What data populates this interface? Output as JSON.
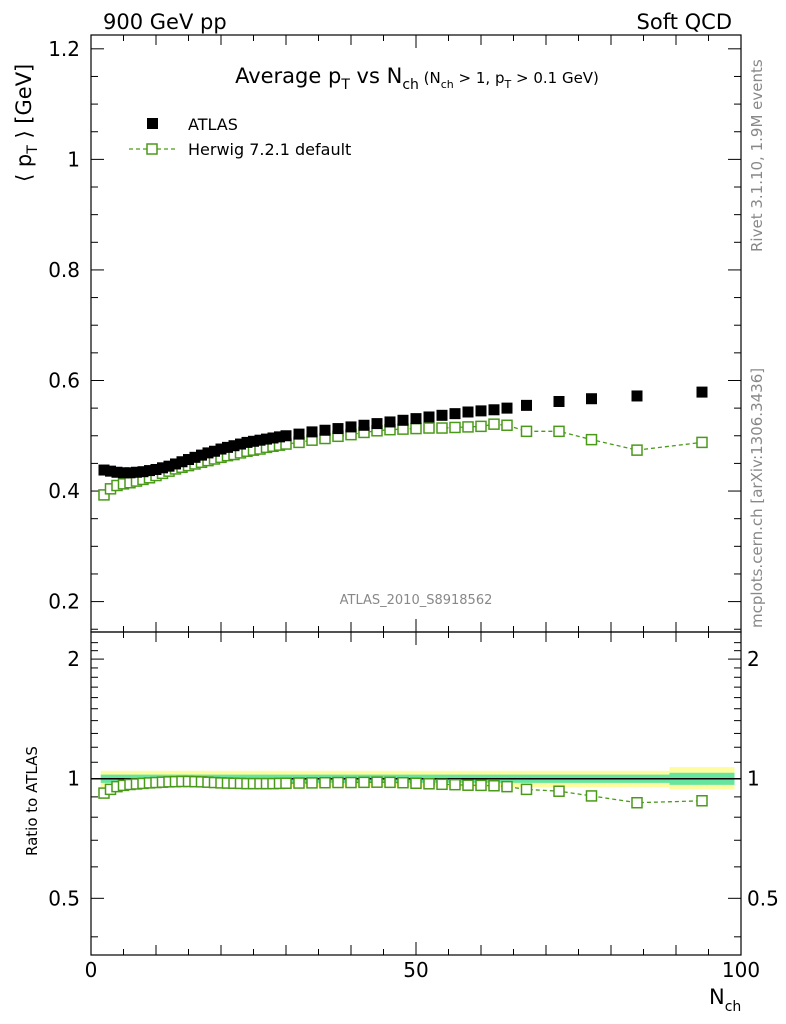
{
  "header": {
    "left": "900 GeV pp",
    "right": "Soft QCD"
  },
  "side_text": {
    "top": "Rivet 3.1.10,  1.9M events",
    "bottom": "mcplots.cern.ch [arXiv:1306.3436]"
  },
  "chart_data": [
    {
      "type": "scatter",
      "title": {
        "main": "Average p",
        "main_sub": "T",
        "vs": " vs N",
        "vs_sub": "ch",
        "cut_open": " (N",
        "cut_sub1": "ch",
        "cut_mid": " > 1, p",
        "cut_sub2": "T",
        "cut_close": " > 0.1 GeV)"
      },
      "ylabel": {
        "open": "⟨ p",
        "sub": "T",
        "close": " ⟩  [GeV]"
      },
      "watermark": "ATLAS_2010_S8918562",
      "xlim": [
        0,
        100
      ],
      "ylim": [
        0.145,
        1.225
      ],
      "yticks": [
        0.2,
        0.4,
        0.6,
        0.8,
        1.0,
        1.2
      ],
      "ytick_labels": [
        "0.2",
        "0.4",
        "0.6",
        "0.8",
        "1",
        "1.2"
      ],
      "series": [
        {
          "name": "ATLAS",
          "marker": "filled-square",
          "color": "#000000",
          "x": [
            2,
            3,
            4,
            5,
            6,
            7,
            8,
            9,
            10,
            11,
            12,
            13,
            14,
            15,
            16,
            17,
            18,
            19,
            20,
            21,
            22,
            23,
            24,
            25,
            26,
            27,
            28,
            29,
            30,
            32,
            34,
            36,
            38,
            40,
            42,
            44,
            46,
            48,
            50,
            52,
            54,
            56,
            58,
            60,
            62,
            64,
            67,
            72,
            77,
            84,
            94
          ],
          "y": [
            0.438,
            0.436,
            0.434,
            0.433,
            0.433,
            0.434,
            0.435,
            0.437,
            0.439,
            0.442,
            0.445,
            0.449,
            0.453,
            0.457,
            0.461,
            0.465,
            0.469,
            0.472,
            0.476,
            0.479,
            0.482,
            0.485,
            0.488,
            0.49,
            0.492,
            0.494,
            0.496,
            0.498,
            0.5,
            0.503,
            0.507,
            0.51,
            0.513,
            0.516,
            0.519,
            0.522,
            0.525,
            0.528,
            0.531,
            0.534,
            0.537,
            0.54,
            0.543,
            0.545,
            0.547,
            0.55,
            0.555,
            0.562,
            0.567,
            0.572,
            0.579
          ]
        },
        {
          "name": "Herwig 7.2.1 default",
          "marker": "open-square",
          "color": "#4a9a1a",
          "x": [
            2,
            3,
            4,
            5,
            6,
            7,
            8,
            9,
            10,
            11,
            12,
            13,
            14,
            15,
            16,
            17,
            18,
            19,
            20,
            21,
            22,
            23,
            24,
            25,
            26,
            27,
            28,
            29,
            30,
            32,
            34,
            36,
            38,
            40,
            42,
            44,
            46,
            48,
            50,
            52,
            54,
            56,
            58,
            60,
            62,
            64,
            67,
            72,
            77,
            84,
            94
          ],
          "y": [
            0.393,
            0.404,
            0.41,
            0.413,
            0.415,
            0.418,
            0.421,
            0.424,
            0.428,
            0.432,
            0.436,
            0.44,
            0.443,
            0.446,
            0.449,
            0.452,
            0.455,
            0.458,
            0.461,
            0.464,
            0.466,
            0.469,
            0.472,
            0.474,
            0.476,
            0.479,
            0.481,
            0.483,
            0.485,
            0.488,
            0.492,
            0.495,
            0.499,
            0.502,
            0.506,
            0.509,
            0.511,
            0.512,
            0.513,
            0.514,
            0.514,
            0.515,
            0.516,
            0.517,
            0.521,
            0.519,
            0.508,
            0.508,
            0.493,
            0.474,
            0.488
          ]
        }
      ]
    },
    {
      "type": "scatter",
      "ylabel": "Ratio to ATLAS",
      "xlabel": "N",
      "xlabel_sub": "ch",
      "xlim": [
        0,
        100
      ],
      "xticks": [
        0,
        50,
        100
      ],
      "xtick_labels": [
        "0",
        "50",
        "100"
      ],
      "ylim": [
        0.36,
        2.34
      ],
      "yticks": [
        0.5,
        1,
        2
      ],
      "ytick_labels": [
        "0.5",
        "1",
        "2"
      ],
      "reference_line": 1.0,
      "bands": {
        "x_edges": [
          1.5,
          89,
          99
        ],
        "inner": [
          [
            0.976,
            1.024
          ],
          [
            0.965,
            1.035
          ]
        ],
        "outer": [
          [
            0.953,
            1.047
          ],
          [
            0.94,
            1.07
          ]
        ],
        "inner_color": "#66e5a0",
        "outer_color": "#fdfda0"
      },
      "series": [
        {
          "name": "Herwig 7.2.1 default",
          "marker": "open-square",
          "color": "#4a9a1a",
          "x": [
            2,
            3,
            4,
            5,
            6,
            7,
            8,
            9,
            10,
            11,
            12,
            13,
            14,
            15,
            16,
            17,
            18,
            19,
            20,
            21,
            22,
            23,
            24,
            25,
            26,
            27,
            28,
            29,
            30,
            32,
            34,
            36,
            38,
            40,
            42,
            44,
            46,
            48,
            50,
            52,
            54,
            56,
            58,
            60,
            62,
            64,
            67,
            72,
            77,
            84,
            94
          ],
          "y": [
            0.92,
            0.94,
            0.955,
            0.962,
            0.967,
            0.97,
            0.973,
            0.976,
            0.978,
            0.98,
            0.982,
            0.983,
            0.984,
            0.984,
            0.983,
            0.982,
            0.98,
            0.978,
            0.976,
            0.975,
            0.974,
            0.973,
            0.972,
            0.972,
            0.972,
            0.972,
            0.972,
            0.973,
            0.974,
            0.975,
            0.976,
            0.977,
            0.978,
            0.978,
            0.979,
            0.98,
            0.979,
            0.977,
            0.974,
            0.971,
            0.968,
            0.966,
            0.963,
            0.962,
            0.96,
            0.955,
            0.94,
            0.93,
            0.905,
            0.87,
            0.88
          ]
        }
      ]
    }
  ]
}
